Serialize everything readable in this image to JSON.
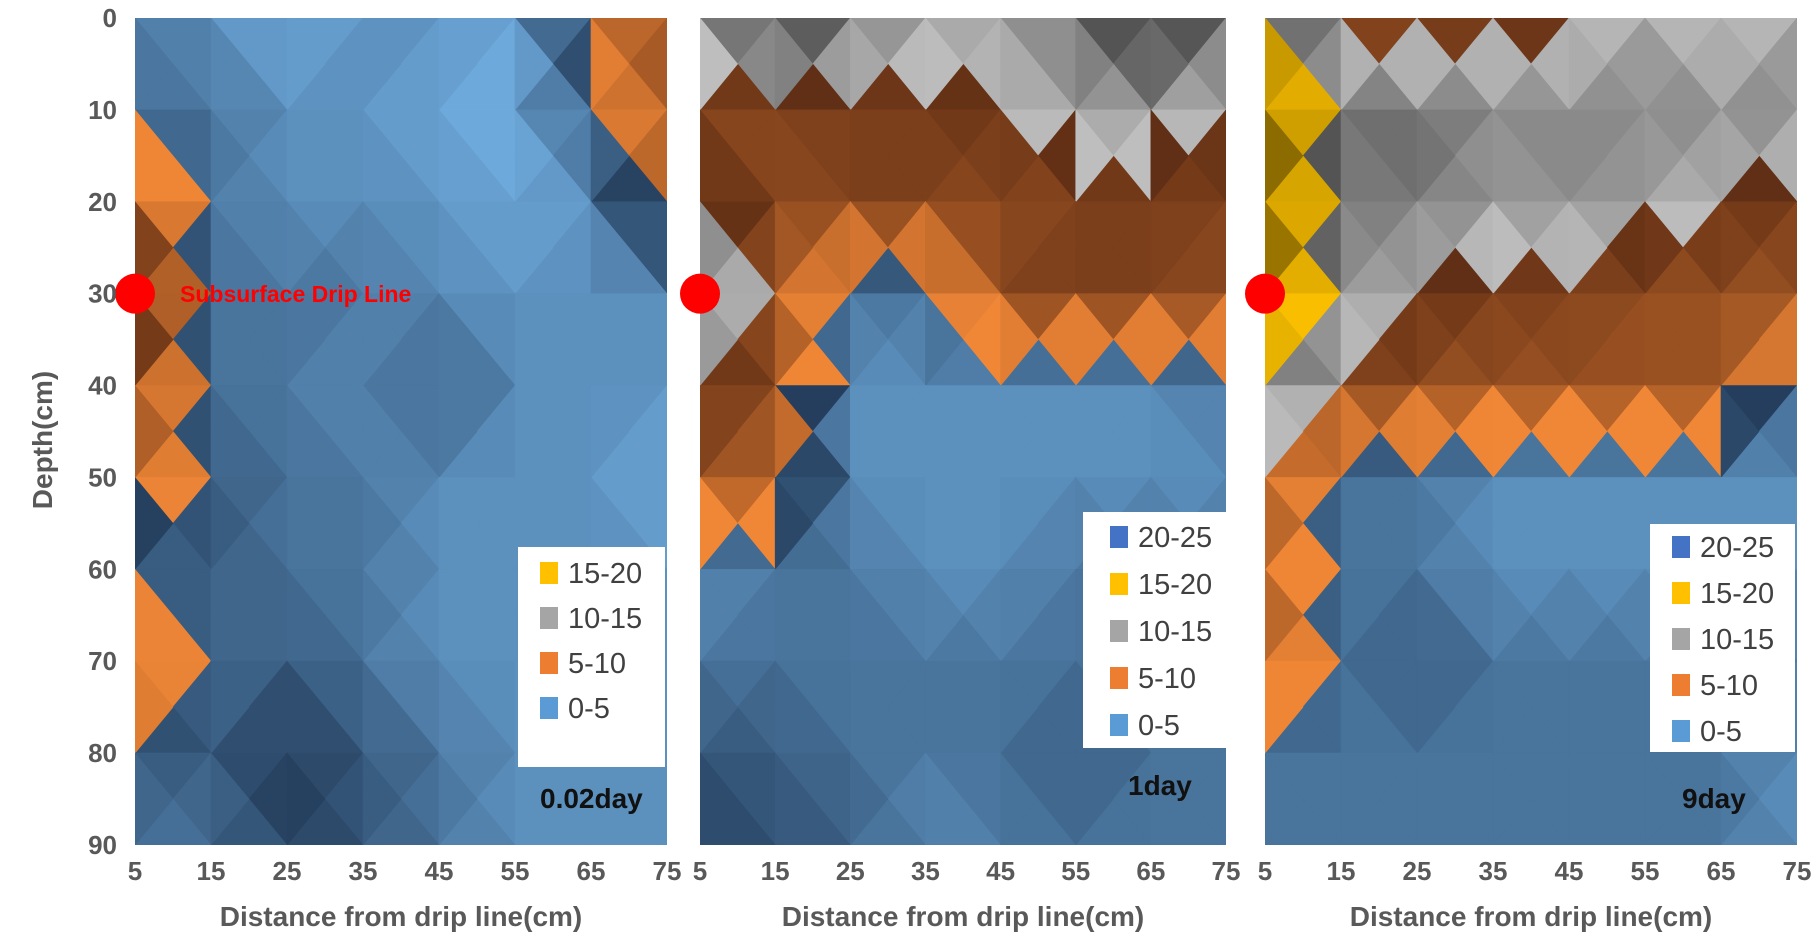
{
  "chart_data": [
    {
      "type": "heatmap",
      "panel_label": "0.02day",
      "xlabel": "Distance from drip line(cm)",
      "ylabel": "Depth(cm)",
      "x_ticks": [
        "5",
        "15",
        "25",
        "35",
        "45",
        "55",
        "65",
        "75"
      ],
      "y_ticks": [
        "0",
        "10",
        "20",
        "30",
        "40",
        "50",
        "60",
        "70",
        "80",
        "90"
      ],
      "xlim": [
        5,
        75
      ],
      "ylim": [
        0,
        90
      ],
      "drip_line": {
        "label": "Subsurface Drip Line",
        "distance": 5,
        "depth": 30
      },
      "legend": [
        {
          "label": "15-20",
          "color": "#ffc000"
        },
        {
          "label": "10-15",
          "color": "#a5a5a5"
        },
        {
          "label": "5-10",
          "color": "#ed7d31"
        },
        {
          "label": "0-5",
          "color": "#5b9bd5"
        }
      ],
      "grid_x": [
        5,
        15,
        25,
        35,
        45,
        55,
        65,
        75
      ],
      "grid_depth": [
        0,
        10,
        20,
        30,
        40,
        50,
        60,
        70,
        80,
        90
      ],
      "values": [
        [
          3,
          2,
          1,
          2,
          2,
          1,
          6,
          8
        ],
        [
          3,
          3,
          2,
          2,
          1,
          1,
          4,
          8
        ],
        [
          8,
          3,
          2,
          2,
          2,
          1,
          2,
          7
        ],
        [
          12,
          3,
          3,
          3,
          2,
          2,
          2,
          2
        ],
        [
          9,
          3,
          3,
          2,
          4,
          2,
          2,
          2
        ],
        [
          7,
          4,
          3,
          3,
          2,
          2,
          2,
          1
        ],
        [
          3,
          4,
          3,
          3,
          2,
          2,
          2,
          2
        ],
        [
          8,
          3,
          4,
          3,
          2,
          2,
          2,
          2
        ],
        [
          4,
          4,
          5,
          4,
          3,
          2,
          2,
          2
        ],
        [
          3,
          3,
          5,
          4,
          3,
          2,
          2,
          2
        ]
      ]
    },
    {
      "type": "heatmap",
      "panel_label": "1day",
      "xlabel": "Distance from drip line(cm)",
      "ylabel": "",
      "x_ticks": [
        "5",
        "15",
        "25",
        "35",
        "45",
        "55",
        "65",
        "75"
      ],
      "y_ticks": [],
      "xlim": [
        5,
        75
      ],
      "ylim": [
        0,
        90
      ],
      "drip_line": {
        "label": "",
        "distance": 5,
        "depth": 30
      },
      "legend": [
        {
          "label": "20-25",
          "color": "#4472c4"
        },
        {
          "label": "15-20",
          "color": "#ffc000"
        },
        {
          "label": "10-15",
          "color": "#a5a5a5"
        },
        {
          "label": "5-10",
          "color": "#ed7d31"
        },
        {
          "label": "0-5",
          "color": "#5b9bd5"
        }
      ],
      "grid_x": [
        5,
        15,
        25,
        35,
        45,
        55,
        65,
        75
      ],
      "grid_depth": [
        0,
        10,
        20,
        30,
        40,
        50,
        60,
        70,
        80,
        90
      ],
      "values": [
        [
          11,
          16,
          13,
          11,
          11,
          13,
          16,
          13
        ],
        [
          8,
          9,
          9,
          9,
          10,
          11,
          11,
          10
        ],
        [
          11,
          8,
          9,
          9,
          8,
          9,
          9,
          9
        ],
        [
          14,
          8,
          3,
          3,
          9,
          9,
          9,
          8
        ],
        [
          10,
          8,
          2,
          2,
          2,
          2,
          2,
          3
        ],
        [
          8,
          7,
          2,
          2,
          2,
          2,
          2,
          2
        ],
        [
          2,
          3,
          3,
          2,
          2,
          3,
          3,
          3
        ],
        [
          3,
          3,
          3,
          3,
          3,
          3,
          3,
          3
        ],
        [
          4,
          4,
          3,
          3,
          3,
          4,
          3,
          3
        ],
        [
          5,
          4,
          4,
          2,
          3,
          3,
          3,
          3
        ]
      ]
    },
    {
      "type": "heatmap",
      "panel_label": "9day",
      "xlabel": "Distance from drip line(cm)",
      "ylabel": "",
      "x_ticks": [
        "5",
        "15",
        "25",
        "35",
        "45",
        "55",
        "65",
        "75"
      ],
      "y_ticks": [],
      "xlim": [
        5,
        75
      ],
      "ylim": [
        0,
        90
      ],
      "drip_line": {
        "label": "",
        "distance": 5,
        "depth": 30
      },
      "legend": [
        {
          "label": "20-25",
          "color": "#4472c4"
        },
        {
          "label": "15-20",
          "color": "#ffc000"
        },
        {
          "label": "10-15",
          "color": "#a5a5a5"
        },
        {
          "label": "5-10",
          "color": "#ed7d31"
        },
        {
          "label": "0-5",
          "color": "#5b9bd5"
        }
      ],
      "grid_x": [
        5,
        15,
        25,
        35,
        45,
        55,
        65,
        75
      ],
      "grid_depth": [
        0,
        10,
        20,
        30,
        40,
        50,
        60,
        70,
        80,
        90
      ],
      "values": [
        [
          16,
          8,
          8,
          9,
          9,
          11,
          9,
          11
        ],
        [
          21,
          13,
          13,
          12,
          12,
          12,
          12,
          12
        ],
        [
          21,
          12,
          13,
          11,
          12,
          11,
          10,
          9
        ],
        [
          20,
          12,
          10,
          9,
          9,
          8,
          8,
          8
        ],
        [
          14,
          9,
          8,
          8,
          8,
          8,
          8,
          3
        ],
        [
          8,
          3,
          3,
          2,
          2,
          2,
          2,
          2
        ],
        [
          7,
          3,
          3,
          2,
          2,
          2,
          2,
          2
        ],
        [
          8,
          3,
          4,
          3,
          3,
          3,
          3,
          3
        ],
        [
          3,
          3,
          3,
          3,
          3,
          3,
          3,
          2
        ],
        [
          3,
          3,
          3,
          3,
          3,
          3,
          3,
          2
        ]
      ]
    }
  ]
}
